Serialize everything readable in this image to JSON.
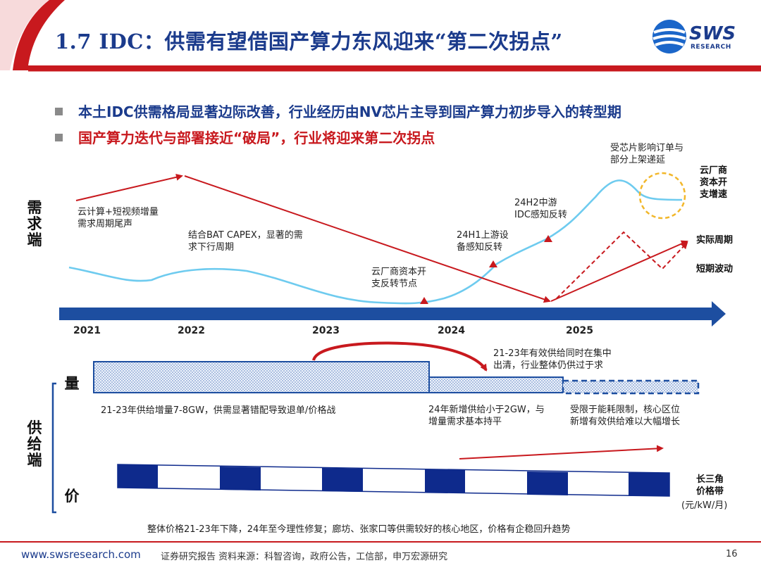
{
  "header": {
    "title": "1.7 IDC：供需有望借国产算力东风迎来“第二次拐点”",
    "logo_text": "SWS",
    "logo_sub": "RESEARCH"
  },
  "bullets": [
    "本土IDC供需格局显著边际改善，行业经历由NV芯片主导到国产算力初步导入的转型期",
    "国产算力迭代与部署接近“破局”，行业将迎来第二次拐点"
  ],
  "colors": {
    "brand": "#1b3b8c",
    "accent_red": "#c8191e",
    "demand_curve": "#6ecbef",
    "timeline_blue": "#1d4ea0",
    "price_block": "#0e2a8c",
    "circle": "#f2b72a"
  },
  "demand": {
    "side_label": "需求端",
    "notes": {
      "n1": [
        "云计算+短视频增量",
        "需求周期尾声"
      ],
      "n2": [
        "结合BAT CAPEX，显著的需",
        "求下行周期"
      ],
      "n3": [
        "云厂商资本开",
        "支反转节点"
      ],
      "n4": [
        "24H1上游设",
        "备感知反转"
      ],
      "n5": [
        "24H2中游",
        "IDC感知反转"
      ],
      "n6": [
        "受芯片影响订单与",
        "部分上架递延"
      ]
    },
    "right_labels": {
      "cloud_capex": [
        "云厂商",
        "资本开",
        "支增速"
      ],
      "actual_cycle": "实际周期",
      "short_fluct": "短期波动"
    }
  },
  "timeline": {
    "years": [
      "2021",
      "2022",
      "2023",
      "2024",
      "2025"
    ]
  },
  "supply": {
    "side_label": "供给端",
    "volume_label": "量",
    "price_label": "价",
    "notes": {
      "v1": "21-23年供给增量7-8GW，供需显著错配导致退单/价格战",
      "v2": [
        "21-23年有效供给同时在集中",
        "出清，行业整体仍供过于求"
      ],
      "v3": [
        "24年新增供给小于2GW，与",
        "增量需求基本持平"
      ],
      "v4": [
        "受限于能耗限制，核心区位",
        "新增有效供给难以大幅增长"
      ],
      "price_band": [
        "长三角",
        "价格带"
      ],
      "price_unit": "(元/kW/月)",
      "price_summary": "整体价格21-23年下降，24年至今理性修复；廊坊、张家口等供需较好的核心地区，价格有企稳回升趋势"
    }
  },
  "footer": {
    "url": "www.swsresearch.com",
    "text": "证券研究报告    资料来源：科智咨询，政府公告，工信部，申万宏源研究",
    "page": "16"
  }
}
